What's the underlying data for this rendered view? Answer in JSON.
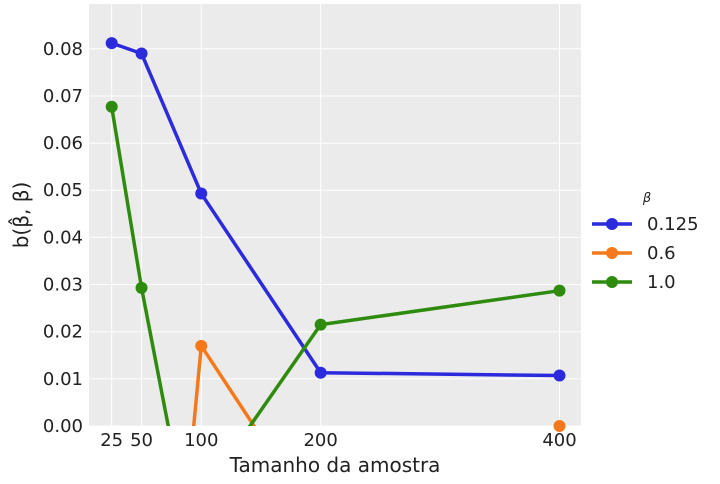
{
  "chart_data": {
    "type": "line",
    "xlabel": "Tamanho da amostra",
    "ylabel": "b(β̂, β)",
    "x_ticks": [
      25,
      50,
      100,
      200,
      400
    ],
    "x_tick_labels": [
      "25",
      "50",
      "100",
      "200",
      "400"
    ],
    "y_ticks": [
      0.0,
      0.01,
      0.02,
      0.03,
      0.04,
      0.05,
      0.06,
      0.07,
      0.08
    ],
    "y_tick_labels": [
      "0.00",
      "0.01",
      "0.02",
      "0.03",
      "0.04",
      "0.05",
      "0.06",
      "0.07",
      "0.08"
    ],
    "xlim": [
      6,
      418
    ],
    "ylim": [
      0.0,
      0.0895
    ],
    "grid": true,
    "background": "#ebebeb",
    "legend": {
      "title": "β",
      "position": "right"
    },
    "series": [
      {
        "name": "0.125",
        "color": "#2b2bdd",
        "x": [
          25,
          50,
          100,
          200,
          400
        ],
        "y": [
          0.0812,
          0.079,
          0.0493,
          0.0113,
          0.0107
        ]
      },
      {
        "name": "0.6",
        "color": "#f5791b",
        "x": [
          100,
          400
        ],
        "y": [
          0.017,
          0.0
        ]
      },
      {
        "name": "1.0",
        "color": "#2e8b0e",
        "x": [
          25,
          50,
          200,
          400
        ],
        "y": [
          0.0677,
          0.0293,
          0.0215,
          0.0287
        ]
      }
    ]
  }
}
